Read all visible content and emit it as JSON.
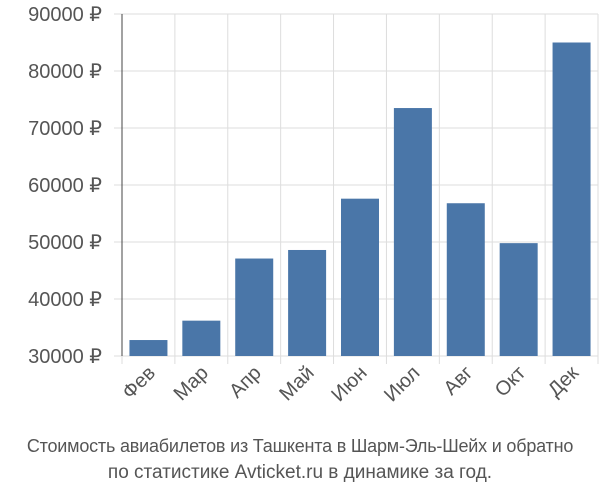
{
  "chart_data": {
    "type": "bar",
    "categories": [
      "Фев",
      "Мар",
      "Апр",
      "Май",
      "Июн",
      "Июл",
      "Авг",
      "Окт",
      "Дек"
    ],
    "values": [
      32800,
      36200,
      47100,
      48600,
      57600,
      73500,
      56800,
      49800,
      85000
    ],
    "y_ticks": [
      "30000 ₽",
      "40000 ₽",
      "50000 ₽",
      "60000 ₽",
      "70000 ₽",
      "80000 ₽",
      "90000 ₽"
    ],
    "ylim": [
      30000,
      90000
    ],
    "tick_step": 10000,
    "grid": true,
    "bar_color": "#4a76a8",
    "grid_color": "#dddddd",
    "title": "",
    "xlabel": "",
    "ylabel": ""
  },
  "caption": {
    "line1": "Стоимость авиабилетов из Ташкента в Шарм-Эль-Шейх и обратно",
    "line2": "по статистике Avticket.ru в динамике за год."
  }
}
